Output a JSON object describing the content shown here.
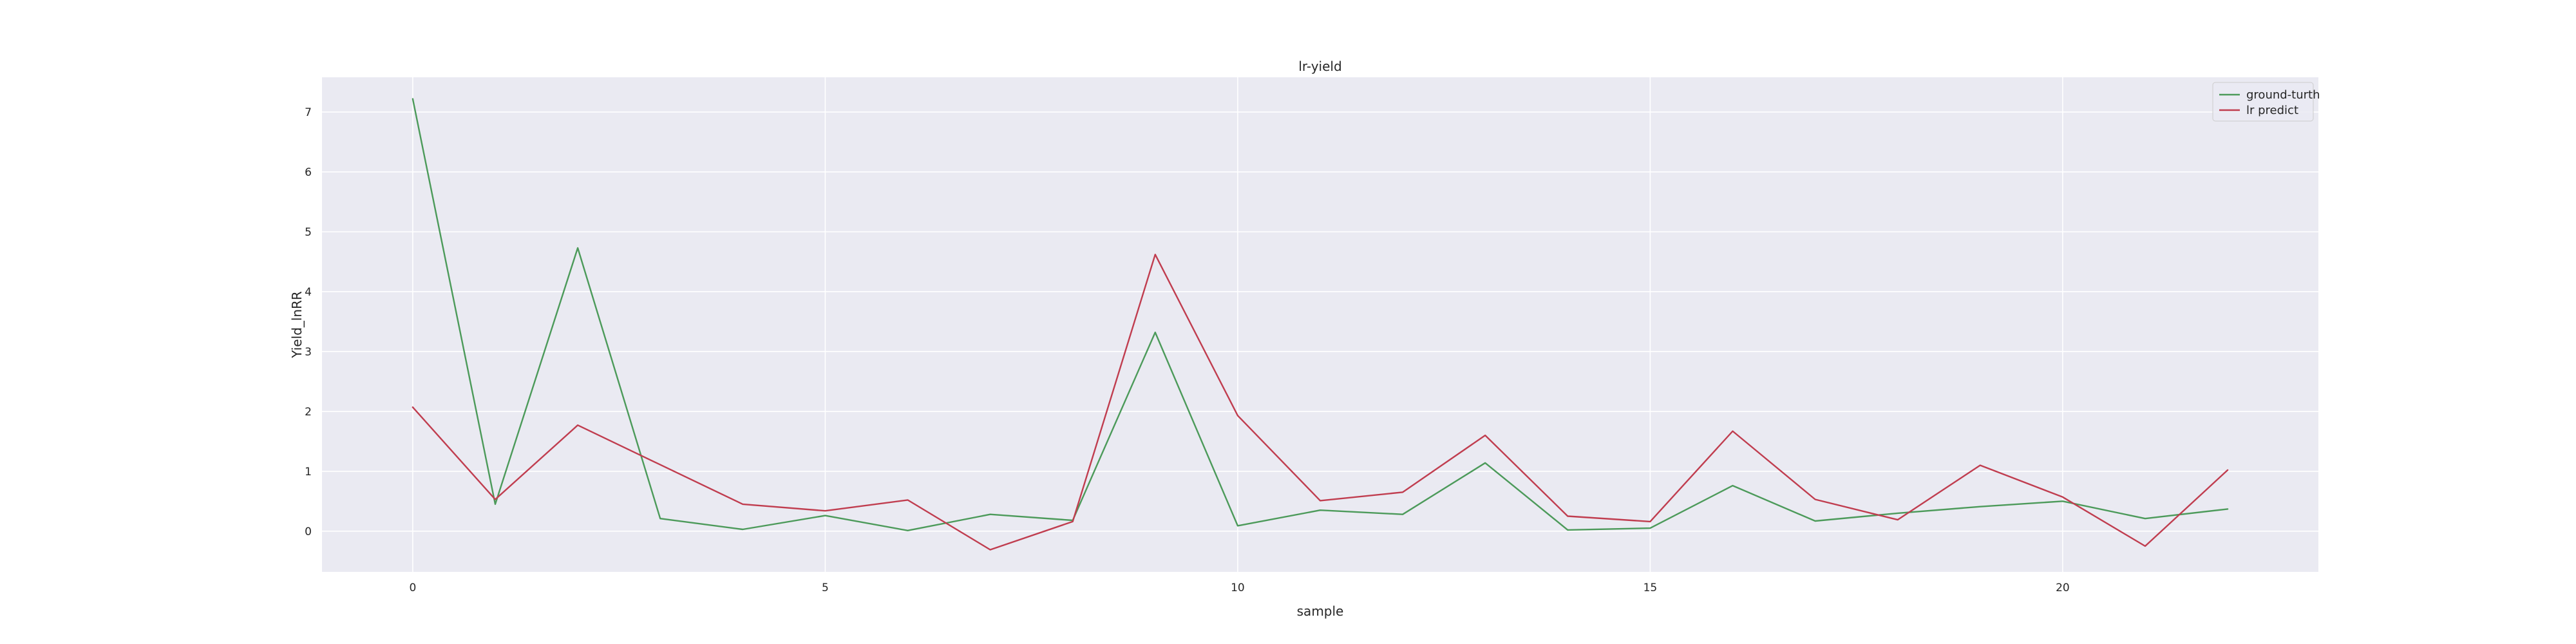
{
  "chart_data": {
    "type": "line",
    "title": "lr-yield",
    "xlabel": "sample",
    "ylabel": "Yield_lnRR",
    "x": [
      0,
      1,
      2,
      3,
      4,
      5,
      6,
      7,
      8,
      9,
      10,
      11,
      12,
      13,
      14,
      15,
      16,
      17,
      18,
      19,
      20,
      21,
      22
    ],
    "xticks": [
      0,
      5,
      10,
      15,
      20
    ],
    "yticks": [
      0,
      1,
      2,
      3,
      4,
      5,
      6,
      7
    ],
    "xlim": [
      -1.1,
      23.1
    ],
    "ylim": [
      -0.68,
      7.58
    ],
    "grid": true,
    "legend_position": "top-right",
    "series": [
      {
        "name": "ground-turth",
        "color": "#4c9a5a",
        "values": [
          7.22,
          0.45,
          4.73,
          0.21,
          0.03,
          0.26,
          0.01,
          0.28,
          0.18,
          3.32,
          0.09,
          0.35,
          0.28,
          1.14,
          0.02,
          0.05,
          0.76,
          0.17,
          0.3,
          0.41,
          0.5,
          0.21,
          0.37
        ]
      },
      {
        "name": "lr predict",
        "color": "#c03d4f",
        "values": [
          2.07,
          0.53,
          1.77,
          1.11,
          0.45,
          0.34,
          0.52,
          -0.31,
          0.16,
          4.62,
          1.93,
          0.51,
          0.65,
          1.6,
          0.25,
          0.16,
          1.67,
          0.53,
          0.19,
          1.1,
          0.57,
          -0.25,
          1.02
        ]
      }
    ]
  }
}
